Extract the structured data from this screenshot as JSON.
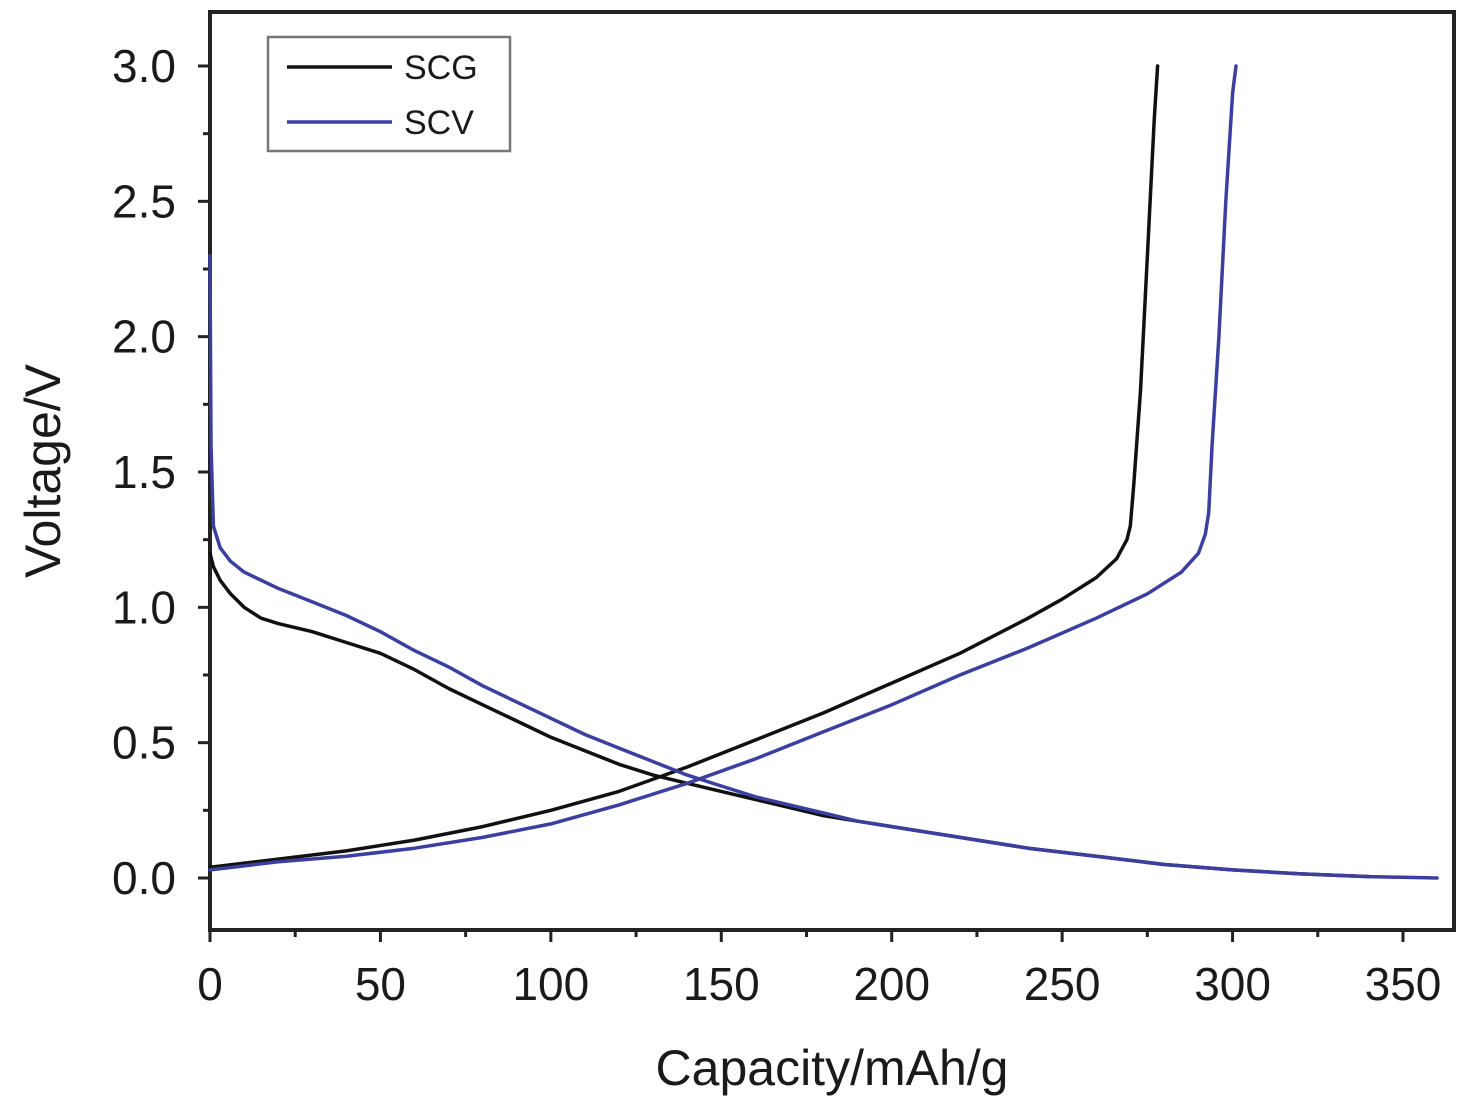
{
  "chart_data": {
    "type": "line",
    "title": "",
    "xlabel": "Capacity/mAh/g",
    "ylabel": "Voltage/V",
    "xlim": [
      0,
      365
    ],
    "ylim": [
      -0.2,
      3.2
    ],
    "xticks": [
      0,
      50,
      100,
      150,
      200,
      250,
      300,
      350
    ],
    "xtick_labels": [
      "0",
      "50",
      "100",
      "150",
      "200",
      "250",
      "300",
      "350"
    ],
    "yticks": [
      0.0,
      0.5,
      1.0,
      1.5,
      2.0,
      2.5,
      3.0
    ],
    "ytick_labels": [
      "0.0",
      "0.5",
      "1.0",
      "1.5",
      "2.0",
      "2.5",
      "3.0"
    ],
    "legend_position": "top-left",
    "grid": false,
    "series": [
      {
        "name": "SCG",
        "color": "#111111",
        "discharge": {
          "x": [
            0,
            1,
            3,
            6,
            10,
            15,
            20,
            30,
            40,
            50,
            60,
            70,
            80,
            90,
            100,
            110,
            120,
            130,
            140,
            150,
            160,
            170,
            180,
            190,
            200,
            220,
            240,
            260,
            280,
            300,
            320,
            340
          ],
          "y": [
            1.2,
            1.15,
            1.1,
            1.05,
            1.0,
            0.96,
            0.94,
            0.91,
            0.87,
            0.83,
            0.77,
            0.7,
            0.64,
            0.58,
            0.52,
            0.47,
            0.42,
            0.38,
            0.35,
            0.32,
            0.29,
            0.26,
            0.23,
            0.21,
            0.19,
            0.15,
            0.11,
            0.08,
            0.05,
            0.03,
            0.015,
            0.005
          ]
        },
        "charge": {
          "x": [
            0,
            20,
            40,
            60,
            80,
            100,
            120,
            140,
            160,
            180,
            200,
            220,
            240,
            250,
            260,
            266,
            269,
            270,
            271,
            273,
            275,
            277,
            278
          ],
          "y": [
            0.04,
            0.07,
            0.1,
            0.14,
            0.19,
            0.25,
            0.32,
            0.41,
            0.51,
            0.61,
            0.72,
            0.83,
            0.96,
            1.03,
            1.11,
            1.18,
            1.25,
            1.3,
            1.45,
            1.8,
            2.3,
            2.8,
            3.0
          ]
        }
      },
      {
        "name": "SCV",
        "color": "#3a3fa0",
        "discharge": {
          "x": [
            0,
            0.3,
            1,
            3,
            6,
            10,
            20,
            30,
            40,
            50,
            60,
            70,
            80,
            90,
            100,
            110,
            120,
            130,
            140,
            150,
            160,
            170,
            180,
            190,
            200,
            220,
            240,
            260,
            280,
            300,
            320,
            340,
            360
          ],
          "y": [
            2.3,
            1.6,
            1.3,
            1.22,
            1.17,
            1.13,
            1.07,
            1.02,
            0.97,
            0.91,
            0.84,
            0.78,
            0.71,
            0.65,
            0.59,
            0.53,
            0.48,
            0.43,
            0.38,
            0.34,
            0.3,
            0.27,
            0.24,
            0.21,
            0.19,
            0.15,
            0.11,
            0.08,
            0.05,
            0.03,
            0.015,
            0.005,
            0.0
          ]
        },
        "charge": {
          "x": [
            0,
            20,
            40,
            60,
            80,
            100,
            120,
            140,
            160,
            180,
            200,
            220,
            240,
            260,
            275,
            285,
            290,
            292,
            293,
            294,
            296,
            298,
            300,
            301
          ],
          "y": [
            0.03,
            0.06,
            0.08,
            0.11,
            0.15,
            0.2,
            0.27,
            0.35,
            0.44,
            0.54,
            0.64,
            0.75,
            0.85,
            0.96,
            1.05,
            1.13,
            1.2,
            1.27,
            1.35,
            1.6,
            2.0,
            2.5,
            2.9,
            3.0
          ]
        }
      }
    ]
  }
}
